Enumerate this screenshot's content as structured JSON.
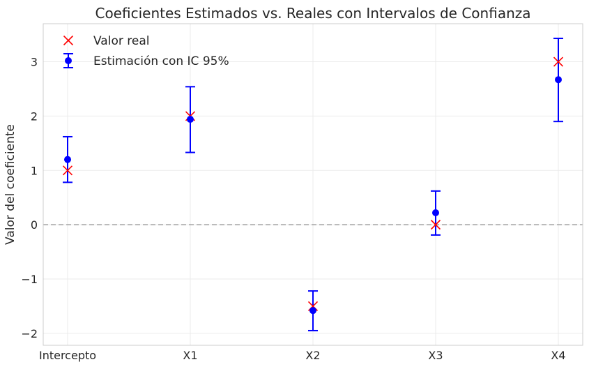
{
  "chart_data": {
    "type": "scatter",
    "title": "Coeficientes Estimados vs. Reales con Intervalos de Confianza",
    "xlabel": "",
    "ylabel": "Valor del coeficiente",
    "categories": [
      "Intercepto",
      "X1",
      "X2",
      "X3",
      "X4"
    ],
    "ylim": [
      -2.22,
      3.7
    ],
    "yticks": [
      -2,
      -1,
      0,
      1,
      2,
      3
    ],
    "ytick_labels": [
      "−2",
      "−1",
      "0",
      "1",
      "2",
      "3"
    ],
    "reference_line_y": 0,
    "grid": true,
    "legend_position": "top-left",
    "series": [
      {
        "name": "Valor real",
        "marker": "x",
        "color": "#ff0000",
        "values": [
          1,
          2,
          -1.5,
          0,
          3
        ]
      },
      {
        "name": "Estimación con IC 95%",
        "marker": "circle-errorbar",
        "color": "#0000ff",
        "values": [
          1.2,
          1.94,
          -1.58,
          0.22,
          2.67
        ],
        "ci_lower": [
          0.78,
          1.33,
          -1.95,
          -0.19,
          1.9
        ],
        "ci_upper": [
          1.62,
          2.54,
          -1.22,
          0.62,
          3.43
        ]
      }
    ]
  }
}
